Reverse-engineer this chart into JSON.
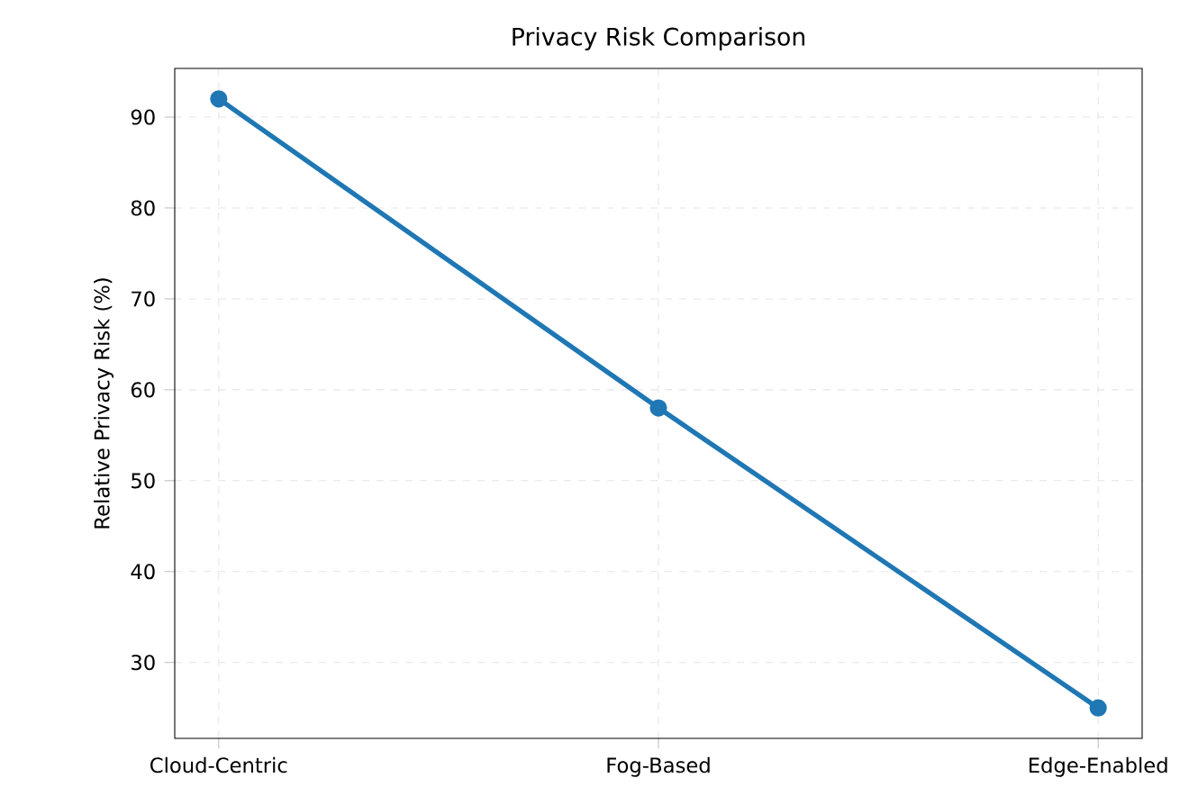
{
  "chart_data": {
    "type": "line",
    "title": "Privacy Risk Comparison",
    "ylabel": "Relative Privacy Risk (%)",
    "categories": [
      "Cloud-Centric",
      "Fog-Based",
      "Edge-Enabled"
    ],
    "series": [
      {
        "color": "#1f77b4",
        "values": [
          92,
          58,
          25
        ]
      }
    ],
    "ylim": [
      21.65,
      95.35
    ],
    "yticks": [
      30,
      40,
      50,
      60,
      70,
      80,
      90
    ],
    "grid": true,
    "marker": "circle",
    "line_style": "solid"
  }
}
